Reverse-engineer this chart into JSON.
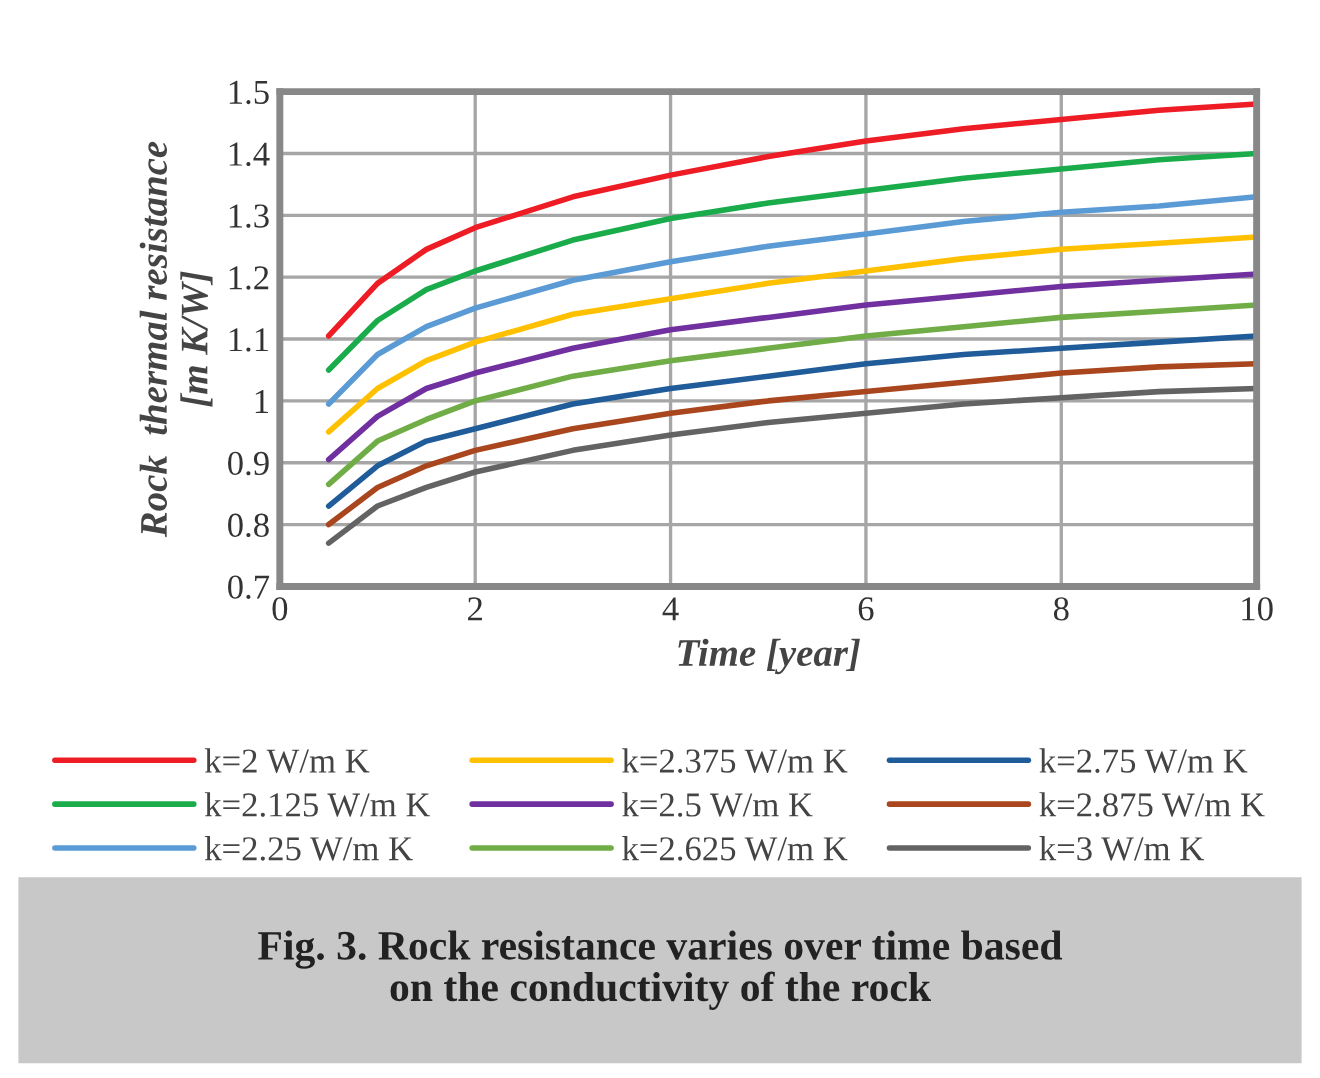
{
  "chart_data": {
    "type": "line",
    "x": [
      0.5,
      1,
      1.5,
      2,
      3,
      4,
      5,
      6,
      7,
      8,
      9,
      10
    ],
    "xlabel": "Time [year]",
    "ylabel": "Rock  thermal resistance\n[m K/W]",
    "xlim": [
      0,
      10
    ],
    "xticks": [
      0,
      2,
      4,
      6,
      8,
      10
    ],
    "ylim": [
      0.7,
      1.5
    ],
    "yticks": [
      0.7,
      0.8,
      0.9,
      1,
      1.1,
      1.2,
      1.3,
      1.4,
      1.5
    ],
    "grid": true,
    "legend": "bottom",
    "marker": "none",
    "line_style": "solid",
    "annotations": [
      "Fig. 3. Rock resistance varies over time based\non the conductivity of the rock"
    ],
    "series": [
      {
        "name": "k=2 W/m K",
        "color": "#ee1c25",
        "values": [
          1.105,
          1.19,
          1.245,
          1.28,
          1.33,
          1.365,
          1.395,
          1.42,
          1.44,
          1.455,
          1.47,
          1.48
        ]
      },
      {
        "name": "k=2.125 W/m K",
        "color": "#1aab4b",
        "values": [
          1.05,
          1.13,
          1.18,
          1.21,
          1.26,
          1.295,
          1.32,
          1.34,
          1.36,
          1.375,
          1.39,
          1.4
        ]
      },
      {
        "name": "k=2.25 W/m K",
        "color": "#5b9bd5",
        "values": [
          0.995,
          1.075,
          1.12,
          1.15,
          1.195,
          1.225,
          1.25,
          1.27,
          1.29,
          1.305,
          1.315,
          1.33
        ]
      },
      {
        "name": "k=2.375 W/m K",
        "color": "#ffc000",
        "values": [
          0.95,
          1.02,
          1.065,
          1.095,
          1.14,
          1.165,
          1.19,
          1.21,
          1.23,
          1.245,
          1.255,
          1.265
        ]
      },
      {
        "name": "k=2.5 W/m K",
        "color": "#7030a0",
        "values": [
          0.905,
          0.975,
          1.02,
          1.045,
          1.085,
          1.115,
          1.135,
          1.155,
          1.17,
          1.185,
          1.195,
          1.205
        ]
      },
      {
        "name": "k=2.625 W/m K",
        "color": "#70ad47",
        "values": [
          0.865,
          0.935,
          0.97,
          1.0,
          1.04,
          1.065,
          1.085,
          1.105,
          1.12,
          1.135,
          1.145,
          1.155
        ]
      },
      {
        "name": "k=2.75 W/m K",
        "color": "#1f5c99",
        "values": [
          0.83,
          0.895,
          0.935,
          0.955,
          0.995,
          1.02,
          1.04,
          1.06,
          1.075,
          1.085,
          1.095,
          1.105
        ]
      },
      {
        "name": "k=2.875 W/m K",
        "color": "#a9461d",
        "values": [
          0.8,
          0.86,
          0.895,
          0.92,
          0.955,
          0.98,
          1.0,
          1.015,
          1.03,
          1.045,
          1.055,
          1.06
        ]
      },
      {
        "name": "k=3 W/m K",
        "color": "#636363",
        "values": [
          0.77,
          0.83,
          0.86,
          0.885,
          0.92,
          0.945,
          0.965,
          0.98,
          0.995,
          1.005,
          1.015,
          1.02
        ]
      }
    ]
  }
}
